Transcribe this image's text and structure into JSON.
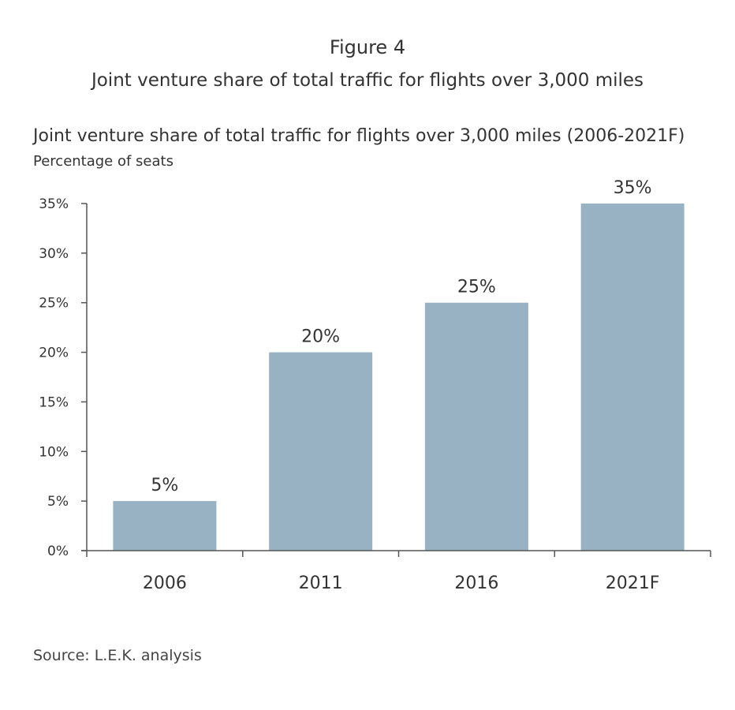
{
  "figure_label": "Figure 4",
  "figure_title": "Joint venture share of total traffic for flights over 3,000 miles",
  "chart_data": {
    "type": "bar",
    "title": "Joint venture share of total traffic for flights over 3,000 miles (2006-2021F)",
    "ylabel": "Percentage of seats",
    "xlabel": "",
    "categories": [
      "2006",
      "2011",
      "2016",
      "2021F"
    ],
    "values": [
      5,
      20,
      25,
      35
    ],
    "data_labels": [
      "5%",
      "20%",
      "25%",
      "35%"
    ],
    "yticks": [
      "0%",
      "5%",
      "10%",
      "15%",
      "20%",
      "25%",
      "30%",
      "35%"
    ],
    "ylim": [
      0,
      35
    ],
    "grid": false,
    "bar_color": "#98b1c3"
  },
  "source": "Source: L.E.K. analysis"
}
